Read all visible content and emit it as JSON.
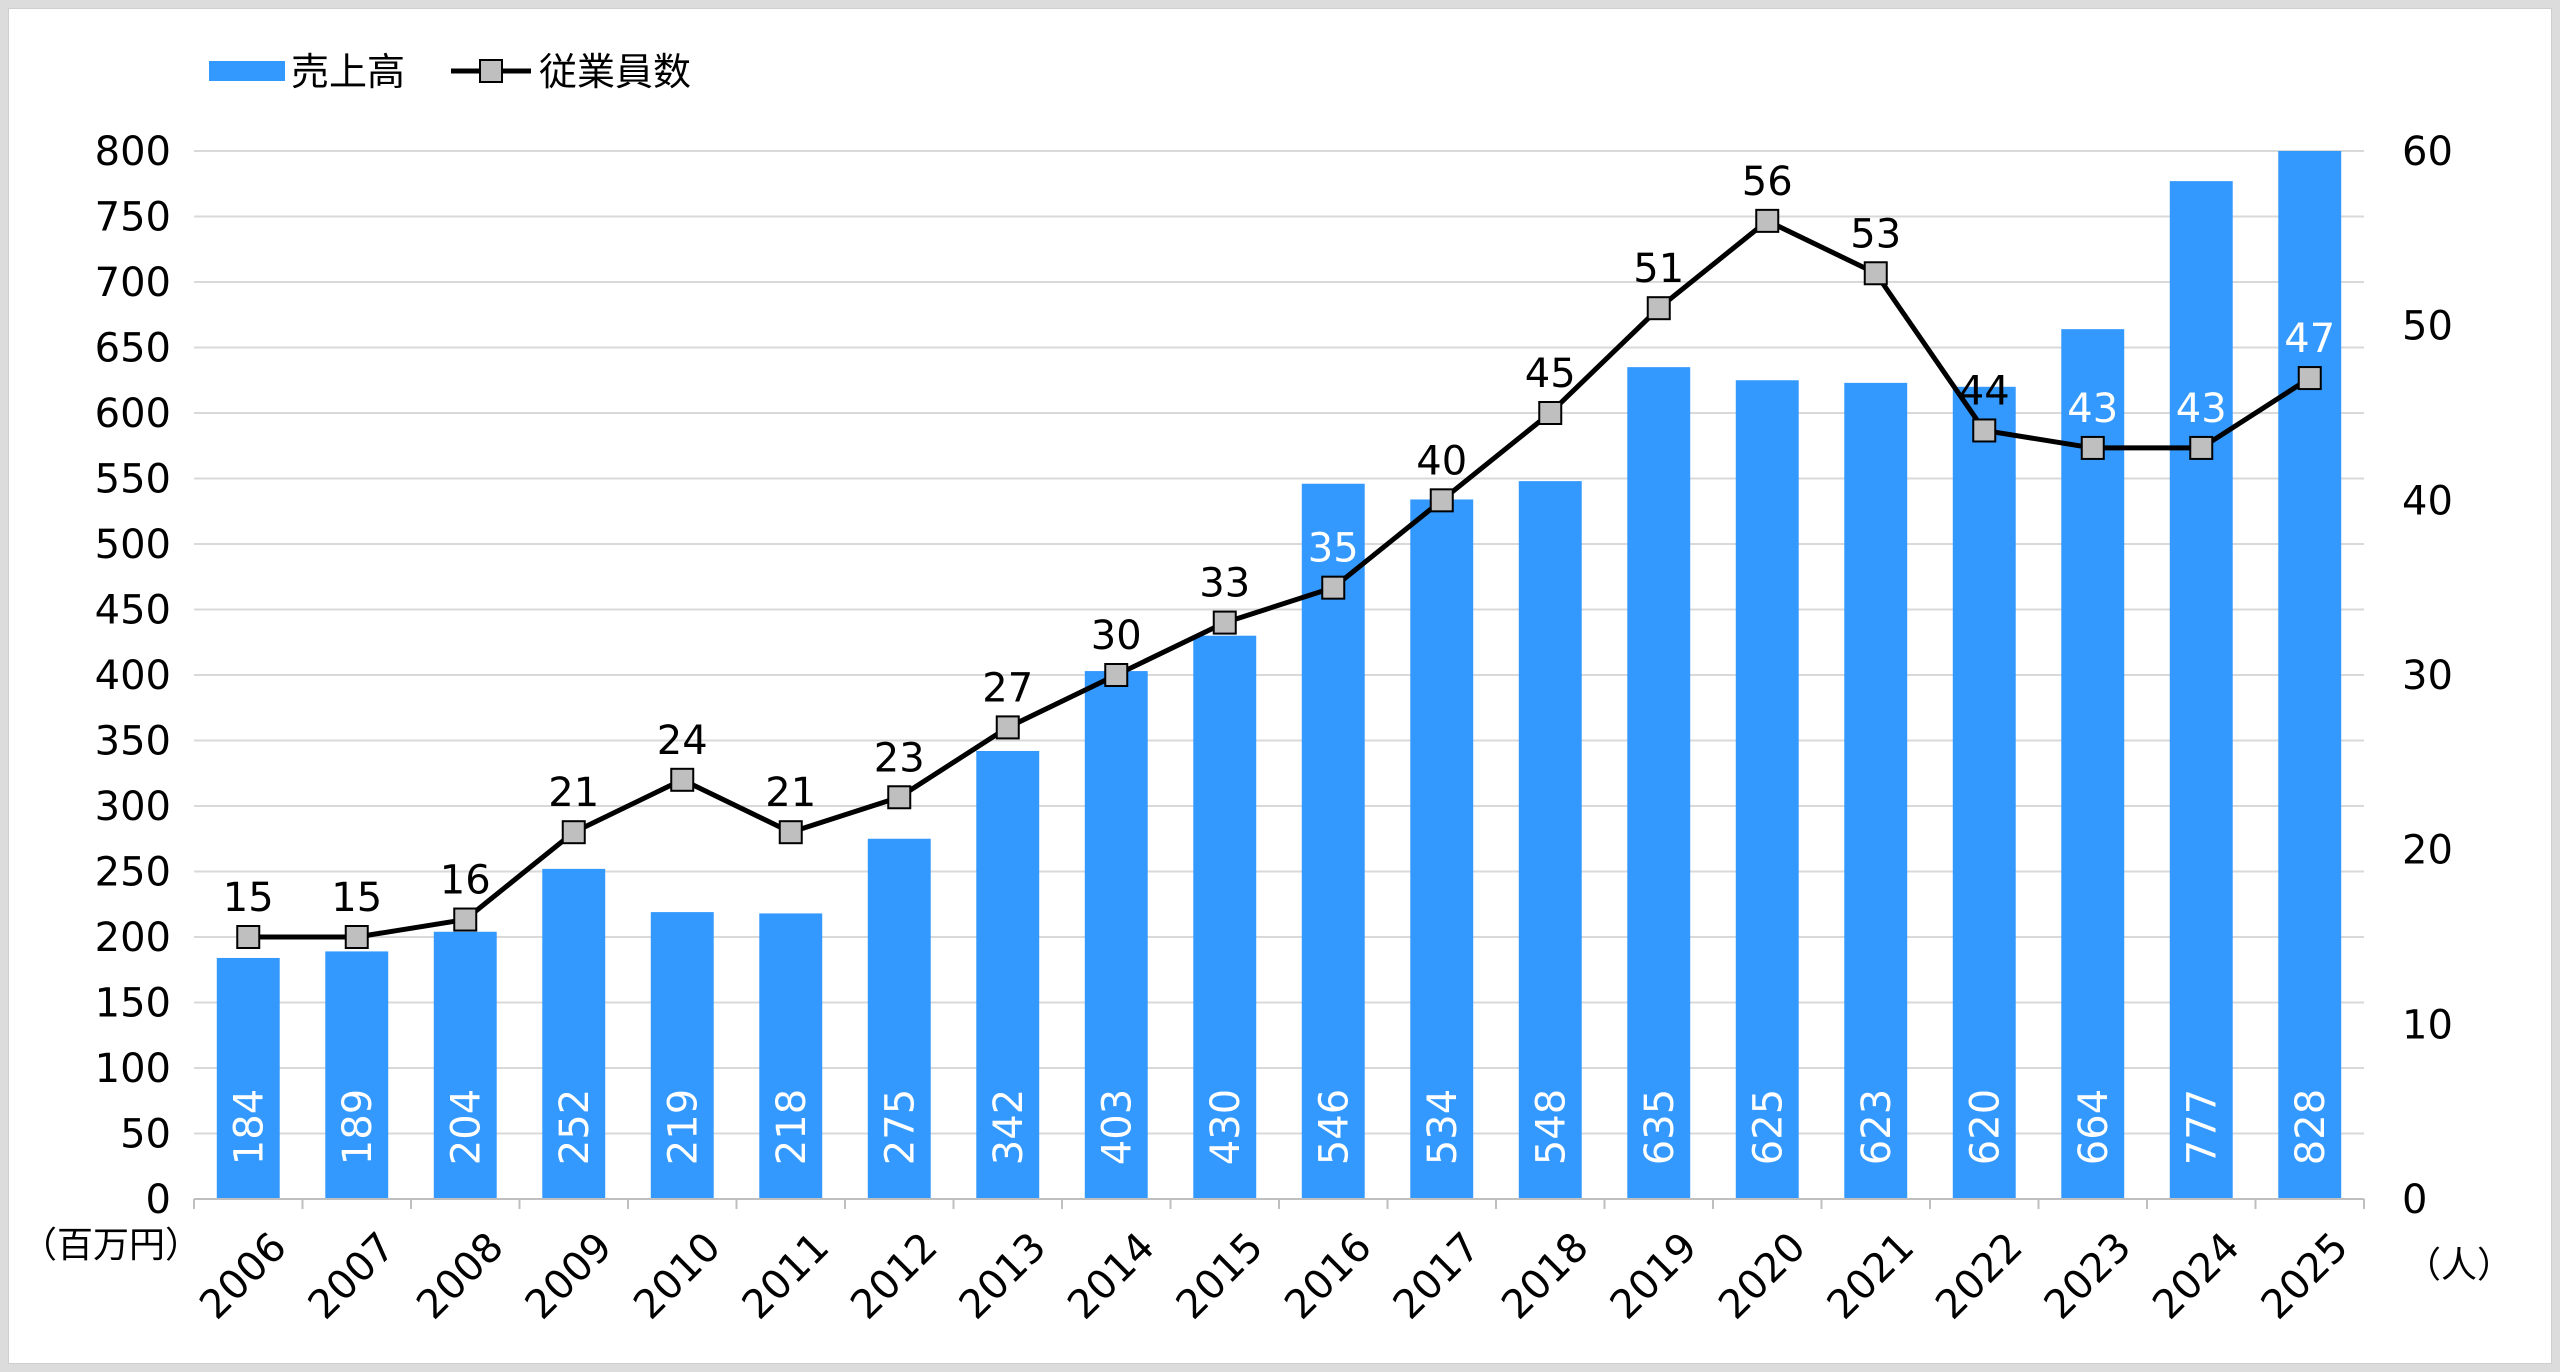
{
  "chart_data": {
    "type": "bar",
    "categories": [
      "2006",
      "2007",
      "2008",
      "2009",
      "2010",
      "2011",
      "2012",
      "2013",
      "2014",
      "2015",
      "2016",
      "2017",
      "2018",
      "2019",
      "2020",
      "2021",
      "2022",
      "2023",
      "2024",
      "2025"
    ],
    "series": [
      {
        "name": "売上高",
        "type": "bar",
        "axis": "left",
        "color": "#3399ff",
        "values": [
          184,
          189,
          204,
          252,
          219,
          218,
          275,
          342,
          403,
          430,
          546,
          534,
          548,
          635,
          625,
          623,
          620,
          664,
          777,
          828
        ]
      },
      {
        "name": "従業員数",
        "type": "line",
        "axis": "right",
        "color": "#000000",
        "marker_color": "#bfbfbf",
        "values": [
          15,
          15,
          16,
          21,
          24,
          21,
          23,
          27,
          30,
          33,
          35,
          40,
          45,
          51,
          56,
          53,
          44,
          43,
          43,
          47
        ]
      }
    ],
    "y_left": {
      "min": 0,
      "max": 800,
      "step": 50,
      "unit": "（百万円）"
    },
    "y_right": {
      "min": 0,
      "max": 60,
      "step": 10,
      "unit": "（人）"
    },
    "grid": true,
    "legend_position": "top-left"
  }
}
